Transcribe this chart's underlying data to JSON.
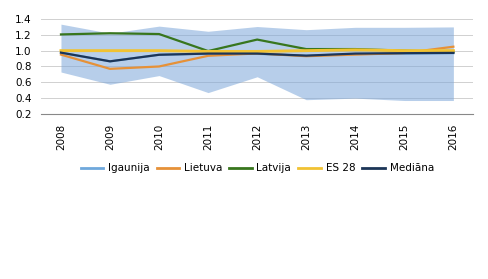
{
  "years": [
    2008,
    2009,
    2010,
    2011,
    2012,
    2013,
    2014,
    2015,
    2016
  ],
  "igaunija": [
    0.975,
    0.865,
    0.948,
    0.963,
    0.96,
    0.935,
    0.957,
    0.963,
    0.968
  ],
  "fill_upper": [
    1.335,
    1.22,
    1.31,
    1.245,
    1.305,
    1.265,
    1.295,
    1.295,
    1.3
  ],
  "fill_lower": [
    0.73,
    0.575,
    0.685,
    0.47,
    0.67,
    0.38,
    0.4,
    0.37,
    0.37
  ],
  "lietuva": [
    0.95,
    0.77,
    0.8,
    0.935,
    0.965,
    0.93,
    0.95,
    0.97,
    1.05
  ],
  "latvija": [
    1.205,
    1.22,
    1.21,
    0.995,
    1.14,
    1.02,
    1.02,
    1.0,
    0.985
  ],
  "es28": [
    1.0,
    1.0,
    1.0,
    0.99,
    0.99,
    1.0,
    1.01,
    1.0,
    1.0
  ],
  "mediana": [
    0.975,
    0.865,
    0.948,
    0.963,
    0.963,
    0.937,
    0.963,
    0.968,
    0.972
  ],
  "color_igaunija": "#6fa8dc",
  "color_lietuva": "#e69138",
  "color_latvija": "#38761d",
  "color_es28": "#f1c232",
  "color_mediana": "#1c3557",
  "color_fill": "#7da7d9",
  "ylim": [
    0.2,
    1.4
  ],
  "yticks": [
    0.2,
    0.4,
    0.6,
    0.8,
    1.0,
    1.2,
    1.4
  ],
  "legend_labels": [
    "Igaunija",
    "Lietuva",
    "Latvija",
    "ES 28",
    "Mediāna"
  ]
}
